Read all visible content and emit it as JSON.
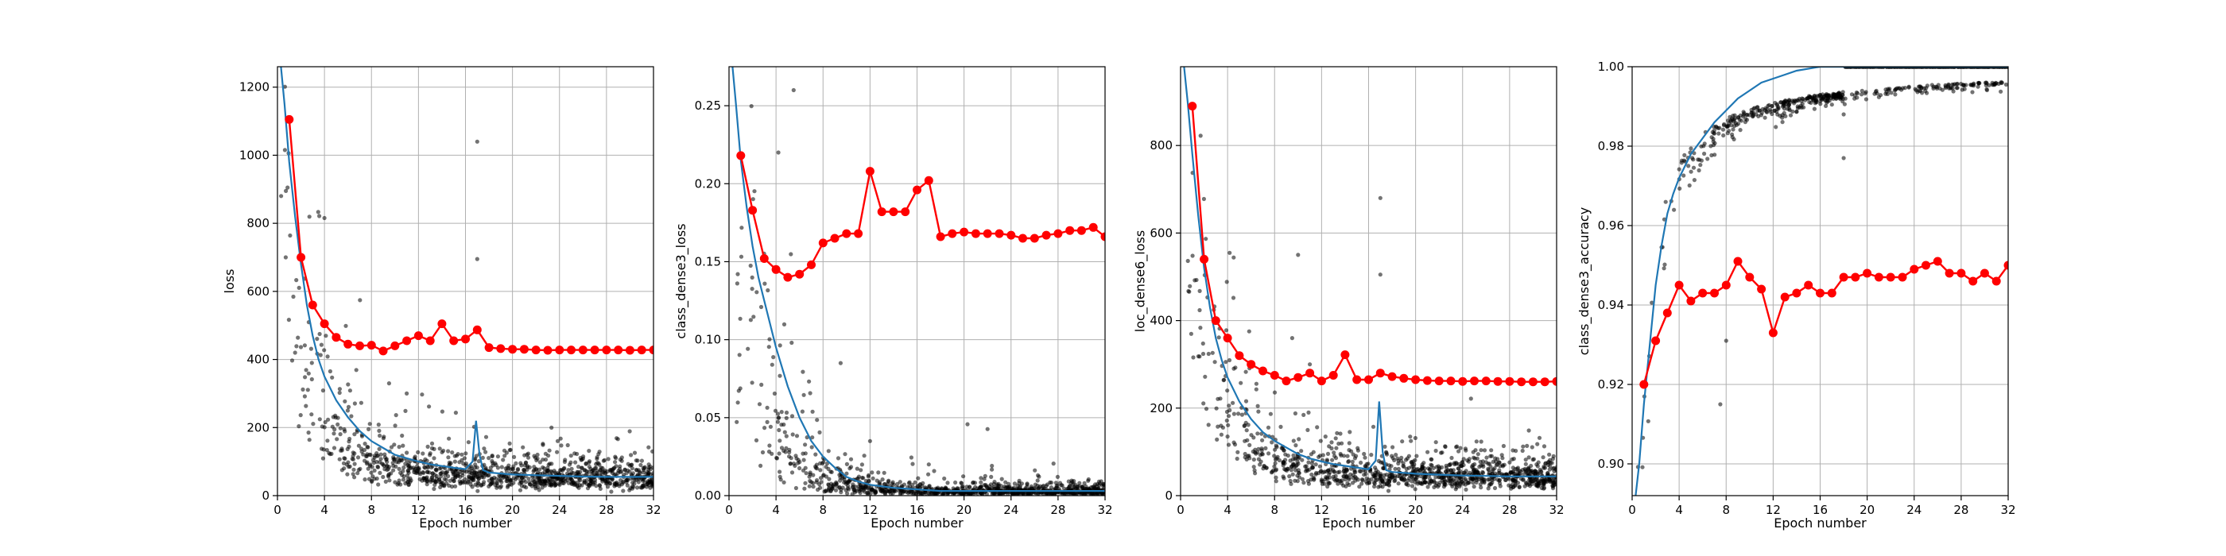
{
  "figure": {
    "colors": {
      "batch_points": "#000000",
      "smoothed": "#1f77b4",
      "epoch": "#ff0000",
      "grid": "#b0b0b0"
    }
  },
  "chart_data": [
    {
      "type": "line",
      "ylabel": "loss",
      "xlabel": "Epoch number",
      "xlim": [
        0,
        32
      ],
      "ylim": [
        0,
        1260
      ],
      "xticks": [
        0,
        4,
        8,
        12,
        16,
        20,
        24,
        28,
        32
      ],
      "xtick_labels": [
        "0",
        "4",
        "8",
        "12",
        "16",
        "20",
        "24",
        "28",
        "32"
      ],
      "yticks": [
        0,
        200,
        400,
        600,
        800,
        1000,
        1200
      ],
      "ytick_labels": [
        "0",
        "200",
        "400",
        "600",
        "800",
        "1000",
        "1200"
      ],
      "series": [
        {
          "role": "epoch",
          "x": [
            1,
            2,
            3,
            4,
            5,
            6,
            7,
            8,
            9,
            10,
            11,
            12,
            13,
            14,
            15,
            16,
            17,
            18,
            19,
            20,
            21,
            22,
            23,
            24,
            25,
            26,
            27,
            28,
            29,
            30,
            31,
            32
          ],
          "y": [
            1105,
            700,
            560,
            505,
            465,
            445,
            440,
            442,
            425,
            440,
            455,
            470,
            455,
            505,
            455,
            460,
            487,
            435,
            432,
            430,
            430,
            428,
            427,
            428,
            428,
            428,
            428,
            428,
            428,
            427,
            428,
            428
          ]
        },
        {
          "role": "smoothed",
          "x": [
            0.3,
            0.6,
            1,
            1.5,
            2,
            2.5,
            3,
            3.5,
            4,
            5,
            6,
            7,
            8,
            9,
            10,
            11,
            12,
            13,
            14,
            15,
            16,
            16.6,
            16.9,
            17.2,
            17.5,
            18,
            20,
            22,
            24,
            26,
            28,
            30,
            32
          ],
          "y": [
            1260,
            1150,
            980,
            820,
            680,
            560,
            470,
            400,
            350,
            280,
            230,
            190,
            160,
            140,
            120,
            110,
            100,
            92,
            87,
            82,
            78,
            100,
            220,
            120,
            75,
            68,
            62,
            60,
            58,
            56,
            55,
            55,
            55
          ]
        },
        {
          "role": "batch",
          "curve": {
            "a": 950,
            "tau": 2.5,
            "floor": 55
          },
          "spread": 0.45,
          "count": 1100,
          "outliers": [
            [
              17,
              1040
            ],
            [
              17,
              695
            ],
            [
              11,
              300
            ],
            [
              9.5,
              330
            ]
          ]
        }
      ]
    },
    {
      "type": "line",
      "ylabel": "class_dense3_loss",
      "xlabel": "Epoch number",
      "xlim": [
        0,
        32
      ],
      "ylim": [
        0,
        0.275
      ],
      "xticks": [
        0,
        4,
        8,
        12,
        16,
        20,
        24,
        28,
        32
      ],
      "xtick_labels": [
        "0",
        "4",
        "8",
        "12",
        "16",
        "20",
        "24",
        "28",
        "32"
      ],
      "yticks": [
        0,
        0.05,
        0.1,
        0.15,
        0.2,
        0.25
      ],
      "ytick_labels": [
        "0.00",
        "0.05",
        "0.10",
        "0.15",
        "0.20",
        "0.25"
      ],
      "series": [
        {
          "role": "epoch",
          "x": [
            1,
            2,
            3,
            4,
            5,
            6,
            7,
            8,
            9,
            10,
            11,
            12,
            13,
            14,
            15,
            16,
            17,
            18,
            19,
            20,
            21,
            22,
            23,
            24,
            25,
            26,
            27,
            28,
            29,
            30,
            31,
            32
          ],
          "y": [
            0.218,
            0.183,
            0.152,
            0.145,
            0.14,
            0.142,
            0.148,
            0.162,
            0.165,
            0.168,
            0.168,
            0.208,
            0.182,
            0.182,
            0.182,
            0.196,
            0.202,
            0.166,
            0.168,
            0.169,
            0.168,
            0.168,
            0.168,
            0.167,
            0.165,
            0.165,
            0.167,
            0.168,
            0.17,
            0.17,
            0.172,
            0.166
          ]
        },
        {
          "role": "smoothed",
          "x": [
            0.3,
            0.6,
            1,
            1.5,
            2,
            2.5,
            3,
            3.5,
            4,
            5,
            6,
            7,
            8,
            9,
            10,
            11,
            12,
            14,
            16,
            18,
            20,
            24,
            28,
            32
          ],
          "y": [
            0.275,
            0.25,
            0.215,
            0.185,
            0.16,
            0.14,
            0.125,
            0.11,
            0.095,
            0.07,
            0.05,
            0.035,
            0.025,
            0.018,
            0.012,
            0.009,
            0.007,
            0.005,
            0.004,
            0.003,
            0.003,
            0.003,
            0.003,
            0.003
          ]
        },
        {
          "role": "batch",
          "curve": {
            "a": 0.25,
            "tau": 2.3,
            "floor": 0.003
          },
          "spread": 0.7,
          "count": 1000,
          "outliers": [
            [
              5.5,
              0.26
            ],
            [
              4.2,
              0.22
            ],
            [
              9.5,
              0.085
            ],
            [
              17,
              0.02
            ],
            [
              12,
              0.035
            ]
          ]
        }
      ]
    },
    {
      "type": "line",
      "ylabel": "loc_dense6_loss",
      "xlabel": "Epoch number",
      "xlim": [
        0,
        32
      ],
      "ylim": [
        0,
        980
      ],
      "xticks": [
        0,
        4,
        8,
        12,
        16,
        20,
        24,
        28,
        32
      ],
      "xtick_labels": [
        "0",
        "4",
        "8",
        "12",
        "16",
        "20",
        "24",
        "28",
        "32"
      ],
      "yticks": [
        0,
        200,
        400,
        600,
        800
      ],
      "ytick_labels": [
        "0",
        "200",
        "400",
        "600",
        "800"
      ],
      "series": [
        {
          "role": "epoch",
          "x": [
            1,
            2,
            3,
            4,
            5,
            6,
            7,
            8,
            9,
            10,
            11,
            12,
            13,
            14,
            15,
            16,
            17,
            18,
            19,
            20,
            21,
            22,
            23,
            24,
            25,
            26,
            27,
            28,
            29,
            30,
            31,
            32
          ],
          "y": [
            890,
            540,
            400,
            360,
            320,
            300,
            285,
            275,
            262,
            270,
            280,
            262,
            275,
            322,
            265,
            265,
            280,
            272,
            268,
            265,
            263,
            262,
            262,
            261,
            262,
            262,
            261,
            261,
            260,
            260,
            260,
            261
          ]
        },
        {
          "role": "smoothed",
          "x": [
            0.3,
            0.6,
            1,
            1.5,
            2,
            2.5,
            3,
            3.5,
            4,
            5,
            6,
            7,
            8,
            9,
            10,
            11,
            12,
            13,
            14,
            15,
            16,
            16.6,
            16.9,
            17.2,
            17.5,
            18,
            20,
            22,
            24,
            26,
            28,
            30,
            32
          ],
          "y": [
            980,
            900,
            780,
            640,
            520,
            430,
            360,
            310,
            270,
            215,
            175,
            145,
            125,
            110,
            95,
            85,
            78,
            72,
            68,
            64,
            60,
            80,
            215,
            100,
            58,
            54,
            50,
            48,
            46,
            45,
            44,
            44,
            44
          ]
        },
        {
          "role": "batch",
          "curve": {
            "a": 720,
            "tau": 2.5,
            "floor": 45
          },
          "spread": 0.45,
          "count": 1100,
          "outliers": [
            [
              17,
              680
            ],
            [
              17,
              505
            ],
            [
              10,
              550
            ],
            [
              9.5,
              360
            ],
            [
              11,
              300
            ]
          ]
        }
      ]
    },
    {
      "type": "line",
      "ylabel": "class_dense3_accuracy",
      "xlabel": "Epoch number",
      "xlim": [
        0,
        32
      ],
      "ylim": [
        0.892,
        1.0
      ],
      "xticks": [
        0,
        4,
        8,
        12,
        16,
        20,
        24,
        28,
        32
      ],
      "xtick_labels": [
        "0",
        "4",
        "8",
        "12",
        "16",
        "20",
        "24",
        "28",
        "32"
      ],
      "yticks": [
        0.9,
        0.92,
        0.94,
        0.96,
        0.98,
        1.0
      ],
      "ytick_labels": [
        "0.90",
        "0.92",
        "0.94",
        "0.96",
        "0.98",
        "1.00"
      ],
      "series": [
        {
          "role": "epoch",
          "x": [
            1,
            2,
            3,
            4,
            5,
            6,
            7,
            8,
            9,
            10,
            11,
            12,
            13,
            14,
            15,
            16,
            17,
            18,
            19,
            20,
            21,
            22,
            23,
            24,
            25,
            26,
            27,
            28,
            29,
            30,
            31,
            32
          ],
          "y": [
            0.92,
            0.931,
            0.938,
            0.945,
            0.941,
            0.943,
            0.943,
            0.945,
            0.951,
            0.947,
            0.944,
            0.933,
            0.942,
            0.943,
            0.945,
            0.943,
            0.943,
            0.947,
            0.947,
            0.948,
            0.947,
            0.947,
            0.947,
            0.949,
            0.95,
            0.951,
            0.948,
            0.948,
            0.946,
            0.948,
            0.946,
            0.95
          ]
        },
        {
          "role": "smoothed",
          "x": [
            0.3,
            0.6,
            1,
            1.5,
            2,
            2.5,
            3,
            3.5,
            4,
            5,
            6,
            7,
            8,
            9,
            10,
            11,
            12,
            13,
            14,
            16,
            18,
            20,
            24,
            28,
            32
          ],
          "y": [
            0.892,
            0.9,
            0.915,
            0.93,
            0.945,
            0.955,
            0.963,
            0.968,
            0.972,
            0.978,
            0.982,
            0.986,
            0.989,
            0.992,
            0.994,
            0.996,
            0.997,
            0.998,
            0.999,
            1.0,
            1.0,
            1.0,
            1.0,
            1.0,
            1.0
          ]
        },
        {
          "role": "batch",
          "mode": "accuracy",
          "count": 900,
          "outliers": [
            [
              7.5,
              0.915
            ],
            [
              18,
              0.988
            ],
            [
              18,
              0.977
            ],
            [
              8,
              0.931
            ]
          ]
        }
      ]
    }
  ]
}
